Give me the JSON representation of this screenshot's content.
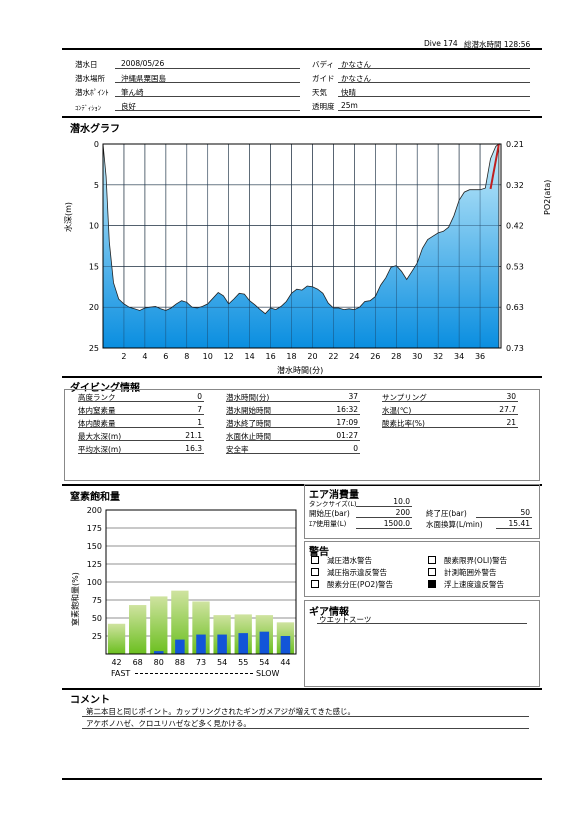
{
  "header": {
    "dive_label": "Dive 174",
    "total_time_label": "総潜水時間 128:56"
  },
  "info": {
    "date_label": "潜水日",
    "date": "2008/05/26",
    "place_label": "潜水場所",
    "place": "沖縄県粟国島",
    "point_label": "潜水ﾎﾟｲﾝﾄ",
    "point": "筆ん崎",
    "condition_label": "ｺﾝﾃﾞｨｼｮﾝ",
    "condition": "良好",
    "buddy_label": "バディ",
    "buddy": "かなさん",
    "guide_label": "ガイド",
    "guide": "かなさん",
    "weather_label": "天気",
    "weather": "快晴",
    "visibility_label": "透明度",
    "visibility": "25m"
  },
  "graph": {
    "title": "潜水グラフ",
    "ylabel": "水深(m)",
    "y2label": "PO2(ata)",
    "xlabel": "潜水時間(分)"
  },
  "chart_data": [
    {
      "type": "area",
      "xlim": [
        0,
        38
      ],
      "ylim": [
        0,
        25
      ],
      "y_ticks": [
        "0",
        "5",
        "10",
        "15",
        "20",
        "25"
      ],
      "x_ticks": [
        "2",
        "4",
        "6",
        "8",
        "10",
        "12",
        "14",
        "16",
        "18",
        "20",
        "22",
        "24",
        "26",
        "28",
        "30",
        "32",
        "34",
        "36"
      ],
      "y2_ticks": [
        "0.21",
        "0.32",
        "0.42",
        "0.53",
        "0.63",
        "0.73"
      ],
      "x": [
        0,
        0.3,
        0.6,
        1,
        1.5,
        2,
        2.5,
        3,
        3.5,
        4,
        4.5,
        5,
        5.5,
        6,
        6.5,
        7,
        7.5,
        8,
        8.5,
        9,
        9.5,
        10,
        10.5,
        11,
        11.5,
        12,
        12.5,
        13,
        13.5,
        14,
        14.5,
        15,
        15.5,
        16,
        16.5,
        17,
        17.5,
        18,
        18.5,
        19,
        19.5,
        20,
        20.5,
        21,
        21.5,
        22,
        22.5,
        23,
        23.5,
        24,
        24.5,
        25,
        25.5,
        26,
        26.5,
        27,
        27.5,
        28,
        28.5,
        29,
        29.5,
        30,
        30.5,
        31,
        31.5,
        32,
        32.5,
        33,
        33.5,
        34,
        34.5,
        35,
        35.5,
        36,
        36.5,
        37,
        37.5,
        37.8
      ],
      "depth": [
        0,
        4,
        12,
        17,
        19,
        19.6,
        20,
        20.2,
        20.4,
        20.1,
        20,
        19.9,
        20.2,
        20.4,
        20.1,
        19.6,
        19.2,
        19.4,
        20,
        20.1,
        19.9,
        19.6,
        18.9,
        18.2,
        18.6,
        19.6,
        19,
        18.3,
        18.4,
        19.2,
        19.7,
        20.3,
        20.8,
        20.1,
        20.3,
        19.9,
        19.3,
        18.3,
        17.8,
        17.9,
        17.4,
        17.5,
        17.8,
        18.3,
        19.5,
        20.1,
        20.1,
        20.3,
        20.2,
        20.3,
        20,
        19.3,
        19.2,
        18.7,
        17.3,
        16.4,
        15.1,
        14.9,
        15.6,
        16.6,
        15.6,
        14.6,
        12.8,
        11.7,
        11.3,
        10.9,
        10.7,
        10.2,
        8.8,
        6.9,
        5.9,
        5.6,
        5.6,
        5.6,
        5.4,
        1.8,
        0.3,
        0
      ]
    },
    {
      "type": "bar",
      "title": "窒素飽和量",
      "ylabel": "窒素飽和量(%)",
      "ylim": [
        0,
        200
      ],
      "y_ticks": [
        25,
        50,
        75,
        100,
        125,
        150,
        175,
        200
      ],
      "categories": [
        "42",
        "68",
        "80",
        "88",
        "73",
        "54",
        "55",
        "54",
        "44"
      ],
      "series": [
        {
          "values": [
            42,
            68,
            80,
            88,
            73,
            54,
            55,
            54,
            44
          ]
        },
        {
          "values": [
            0,
            0,
            4,
            20,
            27,
            27,
            29,
            31,
            25
          ]
        }
      ],
      "fast_label": "FAST",
      "slow_label": "SLOW"
    }
  ],
  "diving_info": {
    "title": "ダイビング情報",
    "rows": [
      {
        "l1": "高度ランク",
        "v1": "0",
        "l2": "潜水時間(分)",
        "v2": "37",
        "l3": "サンプリング",
        "v3": "30"
      },
      {
        "l1": "体内窒素量",
        "v1": "7",
        "l2": "潜水開始時間",
        "v2": "16:32",
        "l3": "水温(℃)",
        "v3": "27.7"
      },
      {
        "l1": "体内酸素量",
        "v1": "1",
        "l2": "潜水終了時間",
        "v2": "17:09",
        "l3": "酸素比率(%)",
        "v3": "21"
      },
      {
        "l1": "最大水深(m)",
        "v1": "21.1",
        "l2": "水面休止時間",
        "v2": "01:27",
        "l3": "",
        "v3": ""
      },
      {
        "l1": "平均水深(m)",
        "v1": "16.3",
        "l2": "安全率",
        "v2": "0",
        "l3": "",
        "v3": ""
      }
    ]
  },
  "air": {
    "title": "エア消費量",
    "tank_label": "タンクサイズ(L)",
    "tank": "10.0",
    "start_label": "開始圧(bar)",
    "start": "200",
    "end_label": "終了圧(bar)",
    "end": "50",
    "used_label": "ｴｱ使用量(L)",
    "used": "1500.0",
    "surface_label": "水面換算(L/min)",
    "surface": "15.41"
  },
  "warnings": {
    "title": "警告",
    "items": [
      {
        "label": "減圧潜水警告",
        "checked": false
      },
      {
        "label": "酸素限界(OLI)警告",
        "checked": false
      },
      {
        "label": "減圧指示違反警告",
        "checked": false
      },
      {
        "label": "計測範囲外警告",
        "checked": false
      },
      {
        "label": "酸素分圧(PO2)警告",
        "checked": false
      },
      {
        "label": "浮上速度違反警告",
        "checked": true
      }
    ]
  },
  "gear": {
    "title": "ギア情報",
    "item": "ウエットスーツ"
  },
  "comment": {
    "title": "コメント",
    "line1": "第二本目と同じポイント。カップリングされたギンガメアジが増えてきた感じ。",
    "line2": "アケボノハゼ、クロユリハゼなど多く見かける。"
  },
  "colors": {
    "area_top": "#c5ecfa",
    "area_bottom": "#0a8ee0",
    "bar_green_top": "#cfe3a0",
    "bar_green_bottom": "#6bbf1f",
    "bar_blue": "#1255d8",
    "po2_line": "#c02020"
  }
}
